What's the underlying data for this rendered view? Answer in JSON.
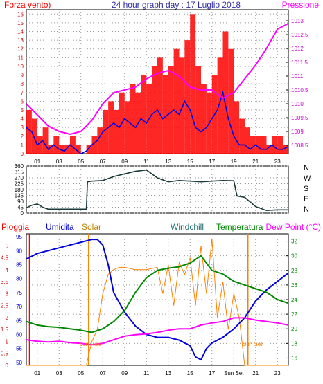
{
  "chart_data": [
    {
      "type": "line",
      "panel": "wind-pressure",
      "title": "24 hour graph day : 17 Luglio 2018",
      "left_label": "Forza vento)",
      "right_label": "Pressione",
      "x_ticks": [
        "01",
        "03",
        "05",
        "07",
        "09",
        "11",
        "13",
        "15",
        "17",
        "19",
        "21",
        "23"
      ],
      "x_range_hours": [
        0,
        24
      ],
      "left_axis": {
        "range": [
          0,
          16.5
        ],
        "ticks": [
          "0",
          "1",
          "2",
          "3",
          "4",
          "5",
          "6",
          "7",
          "8",
          "9",
          "10",
          "11",
          "12",
          "13",
          "14",
          "15",
          "16"
        ]
      },
      "right_axis": {
        "range": [
          1008.2,
          1013.4
        ],
        "ticks": [
          "1008.5",
          "1009",
          "1009.5",
          "1010",
          "1010.5",
          "1011",
          "1011.5",
          "1012",
          "1012.5",
          "1013"
        ]
      },
      "series": [
        {
          "key": "gust",
          "color": "#ff0000",
          "axis": "left",
          "x": [
            0,
            0.5,
            1,
            1.5,
            2,
            2.5,
            3,
            3.5,
            4,
            4.5,
            5,
            5.5,
            6,
            6.5,
            7,
            7.5,
            8,
            8.5,
            9,
            9.5,
            10,
            10.5,
            11,
            11.5,
            12,
            12.5,
            13,
            13.5,
            14,
            14.5,
            15,
            15.5,
            16,
            16.5,
            17,
            17.5,
            18,
            18.5,
            19,
            19.5,
            20,
            20.5,
            21,
            21.5,
            22,
            22.5,
            23,
            23.5,
            24
          ],
          "y": [
            5,
            4,
            2,
            3,
            1,
            2,
            1,
            1,
            2,
            1,
            0,
            1,
            2,
            3,
            5,
            6,
            5,
            7,
            6,
            8,
            7,
            9,
            8,
            10,
            11,
            9,
            10,
            12,
            11,
            13,
            16,
            10,
            8,
            7,
            9,
            11,
            14,
            12,
            6,
            4,
            3,
            2,
            2,
            2,
            1,
            2,
            2,
            1,
            2
          ]
        },
        {
          "key": "wind",
          "color": "#0000dd",
          "axis": "left",
          "x": [
            0,
            0.5,
            1,
            1.5,
            2,
            2.5,
            3,
            3.5,
            4,
            4.5,
            5,
            5.5,
            6,
            6.5,
            7,
            7.5,
            8,
            8.5,
            9,
            9.5,
            10,
            10.5,
            11,
            11.5,
            12,
            12.5,
            13,
            13.5,
            14,
            14.5,
            15,
            15.5,
            16,
            16.5,
            17,
            17.5,
            18,
            18.5,
            19,
            19.5,
            20,
            20.5,
            21,
            21.5,
            22,
            22.5,
            23,
            23.5,
            24
          ],
          "y": [
            3,
            2.5,
            1,
            1.5,
            0.5,
            1,
            0.5,
            0.3,
            1,
            0.5,
            0,
            0.3,
            1,
            1.5,
            2.5,
            3,
            3.5,
            3,
            4,
            3.5,
            3,
            4,
            3.5,
            4.5,
            5,
            4,
            4.5,
            5,
            4.5,
            6,
            5,
            3,
            2.5,
            3,
            4,
            5,
            7,
            4,
            2,
            1,
            1,
            0.5,
            1,
            0.5,
            0.5,
            1,
            0.5,
            0.5,
            0.8
          ]
        },
        {
          "key": "pressure",
          "color": "#ff00ff",
          "axis": "right",
          "x": [
            0,
            1,
            2,
            3,
            4,
            5,
            6,
            7,
            8,
            9,
            10,
            11,
            12,
            13,
            14,
            15,
            16,
            17,
            18,
            19,
            20,
            21,
            22,
            23,
            24
          ],
          "y": [
            1010.0,
            1009.6,
            1009.2,
            1009.0,
            1008.9,
            1009.0,
            1009.4,
            1010.0,
            1010.4,
            1010.5,
            1010.6,
            1010.9,
            1011.1,
            1011.2,
            1011.0,
            1010.6,
            1010.5,
            1010.5,
            1010.2,
            1010.4,
            1010.9,
            1011.4,
            1012.0,
            1012.7,
            1012.9
          ]
        }
      ]
    },
    {
      "type": "line",
      "panel": "wind-direction",
      "x_range_hours": [
        0,
        24
      ],
      "left_axis": {
        "range": [
          0,
          360
        ],
        "ticks": [
          "0",
          "45",
          "90",
          "135",
          "180",
          "225",
          "270",
          "315",
          "360"
        ]
      },
      "compass_labels": [
        "N",
        "W",
        "S",
        "E",
        "N"
      ],
      "series": [
        {
          "key": "direction",
          "color": "#1a3a3a",
          "x": [
            0,
            0.5,
            1,
            1.5,
            2,
            3,
            4,
            5,
            5.5,
            5.6,
            6,
            7,
            8,
            9,
            10,
            11,
            12,
            13,
            14,
            15,
            16,
            17,
            18,
            19,
            19.3,
            20,
            21,
            22,
            23,
            24
          ],
          "y": [
            40,
            60,
            70,
            45,
            30,
            30,
            30,
            30,
            30,
            240,
            245,
            250,
            280,
            300,
            320,
            330,
            270,
            240,
            250,
            245,
            240,
            245,
            250,
            248,
            130,
            120,
            50,
            20,
            25,
            25
          ]
        }
      ]
    },
    {
      "type": "line",
      "panel": "temp-humidity",
      "x_ticks": [
        "01",
        "03",
        "05",
        "07",
        "09",
        "11",
        "13",
        "15",
        "17",
        "Sun Set",
        "21",
        "23"
      ],
      "x_range_hours": [
        0,
        24
      ],
      "header_labels": [
        "Pioggia",
        "Umidita",
        "Solar",
        "Windchill",
        "Temperatura",
        "Dew Point (°C)"
      ],
      "left_outer_axis": {
        "label": "Pioggia",
        "range": [
          0,
          5.5
        ],
        "ticks": [
          "0",
          "0.5",
          "1",
          "1.5",
          "2",
          "2.5",
          "3",
          "3.5",
          "4",
          "4.5",
          "5"
        ]
      },
      "left_inner_axis": {
        "label": "Umidita",
        "range": [
          49,
          96
        ],
        "ticks": [
          "50",
          "55",
          "60",
          "65",
          "70",
          "75",
          "80",
          "85",
          "90",
          "95"
        ]
      },
      "right_axis": {
        "label": "Temperatura",
        "range": [
          15,
          33
        ],
        "ticks": [
          "16",
          "18",
          "20",
          "22",
          "24",
          "26",
          "28",
          "30",
          "32"
        ]
      },
      "annotations": [
        "Sun Rise",
        "Sun Set"
      ],
      "series": [
        {
          "key": "humidity",
          "color": "#0000dd",
          "axis": "left_inner",
          "x": [
            0,
            1,
            2,
            3,
            4,
            5,
            6,
            6.5,
            7,
            7.5,
            8,
            9,
            10,
            11,
            12,
            13,
            14,
            15,
            15.5,
            16,
            16.5,
            17,
            18,
            19,
            20,
            21,
            22,
            23,
            24
          ],
          "y": [
            87,
            89,
            90,
            91,
            92,
            93,
            94,
            94,
            92,
            85,
            75,
            68,
            63,
            60,
            59,
            59,
            58,
            56,
            52,
            51,
            55,
            57,
            59,
            62,
            66,
            72,
            76,
            79,
            82
          ]
        },
        {
          "key": "temperatura",
          "color": "#008800",
          "axis": "right",
          "x": [
            0,
            1,
            2,
            3,
            4,
            5,
            6,
            7,
            8,
            9,
            10,
            11,
            12,
            13,
            14,
            15,
            16,
            17,
            18,
            19,
            20,
            21,
            22,
            23,
            24
          ],
          "y": [
            21,
            20.5,
            20.3,
            20.2,
            20,
            19.8,
            19.5,
            20,
            21,
            22.5,
            25,
            27,
            28,
            28.3,
            28.5,
            29,
            30,
            28,
            27.5,
            26.5,
            26,
            25.5,
            25,
            24,
            23.5
          ]
        },
        {
          "key": "dewpoint",
          "color": "#ff00ff",
          "axis": "right",
          "x": [
            0,
            1,
            2,
            3,
            4,
            5,
            6,
            7,
            8,
            9,
            10,
            11,
            12,
            13,
            14,
            15,
            16,
            17,
            18,
            19,
            20,
            21,
            22,
            23,
            24
          ],
          "y": [
            18.5,
            18.3,
            18.2,
            18.3,
            18.1,
            18.0,
            17.8,
            18.0,
            18.5,
            19,
            19.2,
            19.3,
            19.5,
            19.8,
            20,
            20,
            20.5,
            20.8,
            21,
            21.5,
            21.5,
            21.2,
            21,
            20.8,
            20.5
          ]
        },
        {
          "key": "solar",
          "color": "#ff8000",
          "axis": "left_outer",
          "x": [
            0,
            5,
            5.5,
            6,
            6.5,
            7,
            7.5,
            8,
            8.5,
            9,
            10,
            11,
            12,
            12.5,
            13,
            13.5,
            14,
            14.5,
            15,
            15.5,
            16,
            16.5,
            17,
            17.5,
            18,
            18.5,
            19,
            19.5,
            20,
            24
          ],
          "y": [
            0,
            0,
            0,
            1,
            1.5,
            3,
            3.8,
            4,
            4.1,
            4.1,
            4,
            4,
            4.1,
            3,
            4.2,
            2.5,
            4.3,
            3.8,
            4.5,
            2.5,
            5,
            3,
            5.3,
            2,
            3.5,
            1.5,
            3,
            2,
            0,
            0
          ]
        }
      ],
      "markers": [
        {
          "key": "sunrise",
          "x": 5.7,
          "color": "#ff8000"
        },
        {
          "key": "sunset",
          "x": 20.3,
          "color": "#ff8000"
        },
        {
          "key": "rain-start",
          "x": 0.3,
          "color": "#ff0000"
        }
      ]
    }
  ]
}
